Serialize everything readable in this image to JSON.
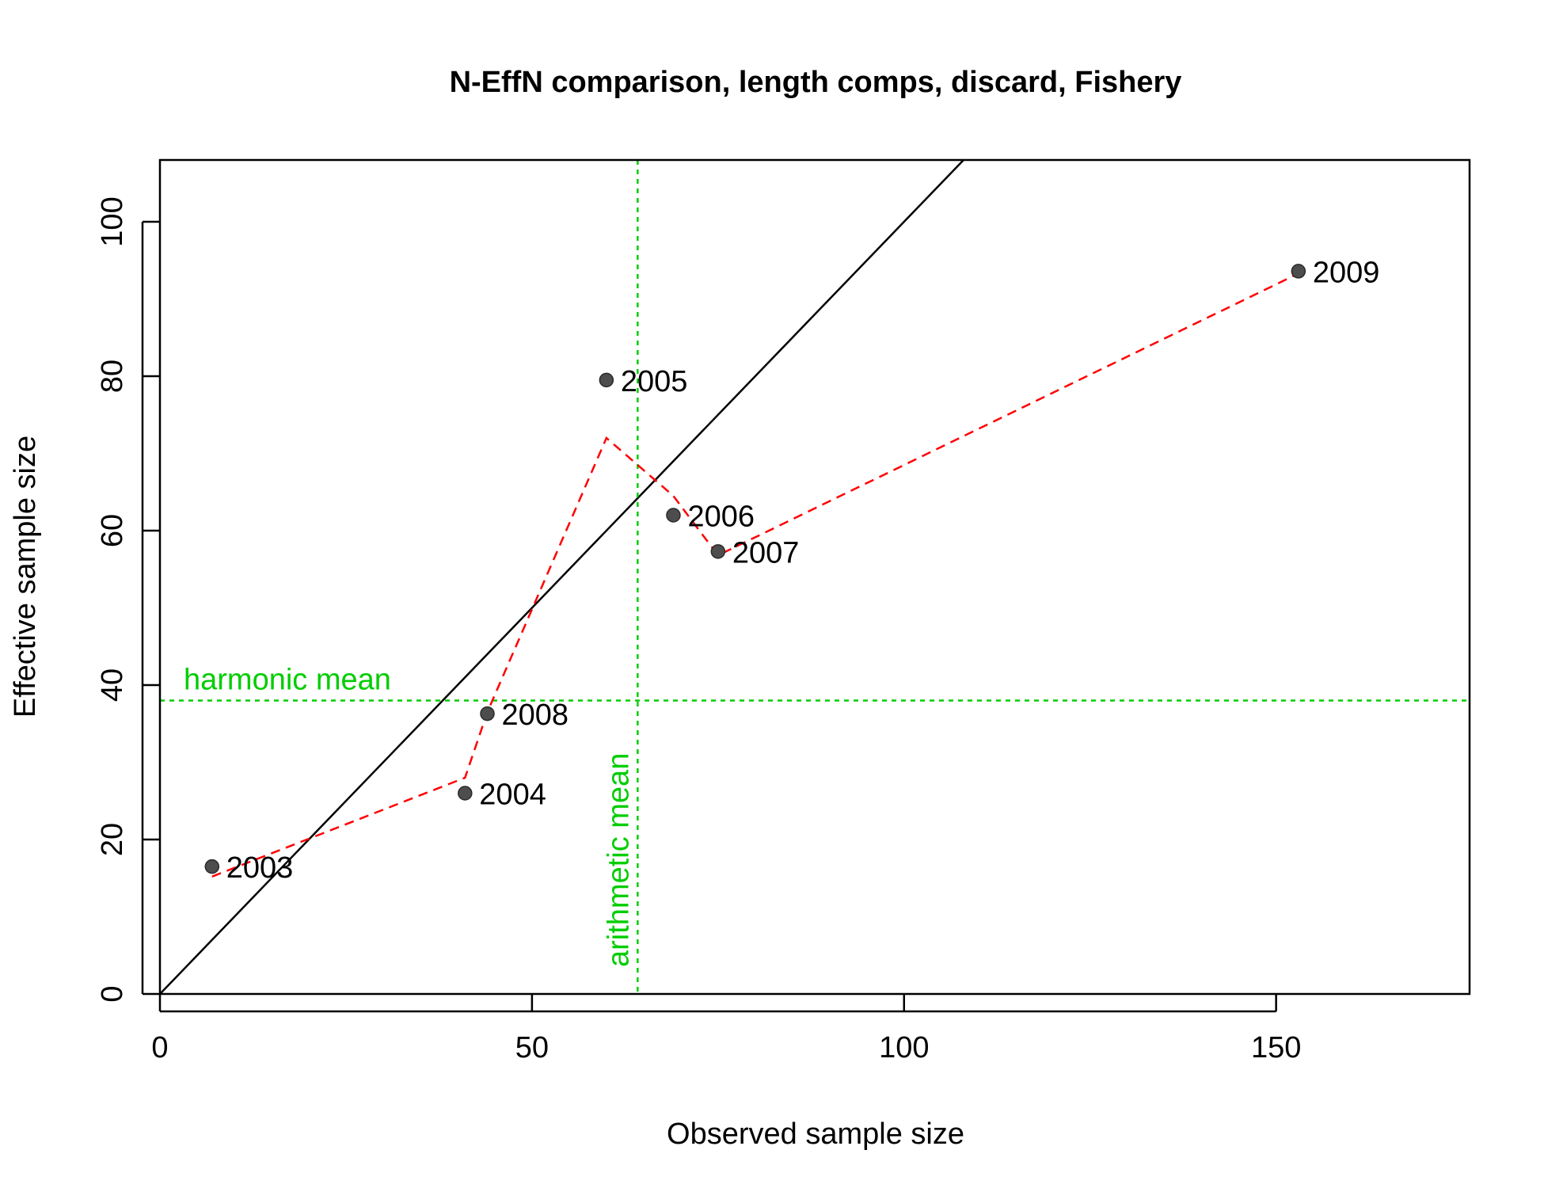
{
  "chart_data": {
    "type": "scatter",
    "title": "N-EffN comparison, length comps, discard, Fishery",
    "xlabel": "Observed sample size",
    "ylabel": "Effective sample size",
    "xlim": [
      0,
      176
    ],
    "ylim": [
      0,
      108
    ],
    "xticks": [
      0,
      50,
      100,
      150
    ],
    "yticks": [
      0,
      20,
      40,
      60,
      80,
      100
    ],
    "grid": false,
    "points": [
      {
        "label": "2003",
        "x": 7,
        "y": 16.5
      },
      {
        "label": "2004",
        "x": 41,
        "y": 26
      },
      {
        "label": "2005",
        "x": 60,
        "y": 79.5
      },
      {
        "label": "2006",
        "x": 69,
        "y": 62
      },
      {
        "label": "2007",
        "x": 75,
        "y": 57.3
      },
      {
        "label": "2008",
        "x": 44,
        "y": 36.3
      },
      {
        "label": "2009",
        "x": 153,
        "y": 93.6
      }
    ],
    "smoother": {
      "x": [
        7,
        41,
        44,
        60,
        69,
        75,
        153
      ],
      "y": [
        15.2,
        28,
        36.5,
        72,
        64.5,
        56.8,
        93.3
      ],
      "color": "#ff0000",
      "style": "dashed"
    },
    "identity_line": {
      "slope": 1,
      "intercept": 0,
      "color": "#000000"
    },
    "harmonic_mean": {
      "value": 38,
      "label": "harmonic mean",
      "color": "#00cd00"
    },
    "arithmetic_mean": {
      "value": 64.2,
      "label": "arithmetic mean",
      "color": "#00cd00"
    },
    "point_color": "#4d4d4d"
  }
}
